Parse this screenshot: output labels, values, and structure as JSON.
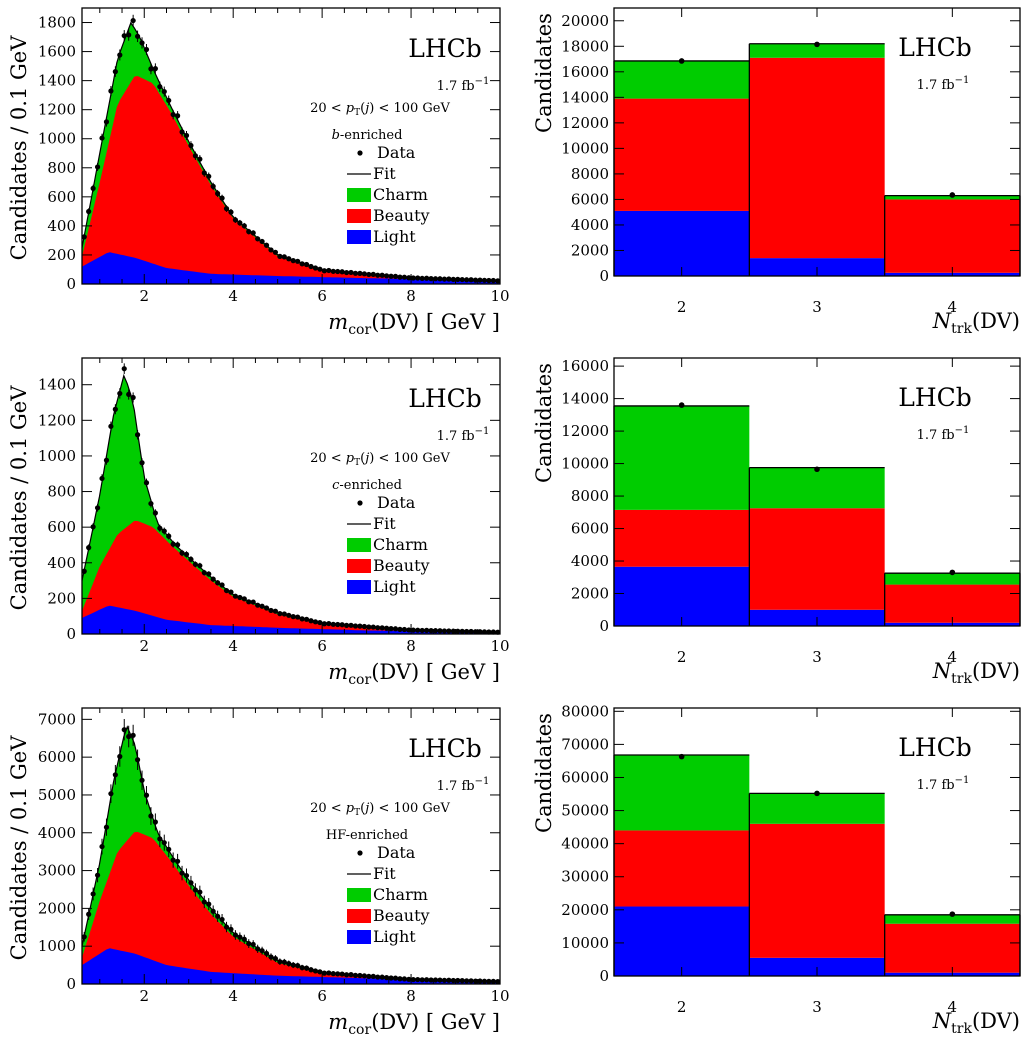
{
  "chart_data": [
    {
      "type": "area",
      "panel": "mcor-b-enriched",
      "ylabel": "Candidates / 0.1 GeV",
      "xlabel": "m_cor(DV) [GeV]",
      "xlim": [
        0.6,
        10
      ],
      "ylim": [
        0,
        1900
      ],
      "xticks": [
        2,
        4,
        6,
        8,
        10
      ],
      "yticks": [
        0,
        200,
        400,
        600,
        800,
        1000,
        1200,
        1400,
        1600,
        1800
      ],
      "labels": [
        "LHCb",
        "1.7 fb⁻¹",
        "20 < pT(j) < 100 GeV",
        "b-enriched"
      ],
      "legend": [
        "Data",
        "Fit",
        "Charm",
        "Beauty",
        "Light"
      ],
      "legend_position": "right",
      "total_max": 1800,
      "beauty_max": 1440,
      "light_max": 220,
      "series": [
        {
          "name": "Light",
          "color": "#0000ff",
          "x": [
            0.6,
            1.2,
            1.8,
            2.5,
            3.5,
            5,
            7,
            10
          ],
          "values": [
            120,
            220,
            180,
            110,
            70,
            55,
            40,
            25
          ]
        },
        {
          "name": "Beauty",
          "color": "#ff0000",
          "x": [
            0.6,
            1.0,
            1.4,
            1.8,
            2.2,
            2.6,
            3.0,
            3.5,
            4.0,
            5.0,
            6.0,
            8.0,
            10
          ],
          "values": [
            190,
            700,
            1240,
            1440,
            1380,
            1180,
            950,
            680,
            450,
            190,
            90,
            40,
            20
          ]
        },
        {
          "name": "Charm",
          "color": "#00cc00",
          "x": [
            0.6,
            1.0,
            1.4,
            1.7,
            1.9,
            2.2,
            2.6,
            3.0,
            3.5,
            4.0,
            5.0,
            6.0,
            8.0,
            10
          ],
          "values": [
            250,
            900,
            1550,
            1800,
            1700,
            1480,
            1220,
            980,
            700,
            460,
            200,
            95,
            42,
            22
          ]
        }
      ]
    },
    {
      "type": "bar",
      "panel": "ntrk-b-enriched",
      "ylabel": "Candidates",
      "xlabel": "N_trk(DV)",
      "categories": [
        "2",
        "3",
        "4"
      ],
      "ylim": [
        0,
        21000
      ],
      "yticks": [
        0,
        2000,
        4000,
        6000,
        8000,
        10000,
        12000,
        14000,
        16000,
        18000,
        20000
      ],
      "labels": [
        "LHCb",
        "1.7 fb⁻¹"
      ],
      "series": [
        {
          "name": "Light",
          "color": "#0000ff",
          "values": [
            5100,
            1400,
            250
          ]
        },
        {
          "name": "Beauty",
          "color": "#ff0000",
          "values": [
            8800,
            15700,
            5750
          ]
        },
        {
          "name": "Charm",
          "color": "#00cc00",
          "values": [
            2950,
            1100,
            300
          ]
        }
      ],
      "data_points": [
        16850,
        18150,
        6350
      ]
    },
    {
      "type": "area",
      "panel": "mcor-c-enriched",
      "ylabel": "Candidates / 0.1 GeV",
      "xlabel": "m_cor(DV) [GeV]",
      "xlim": [
        0.6,
        10
      ],
      "ylim": [
        0,
        1550
      ],
      "xticks": [
        2,
        4,
        6,
        8,
        10
      ],
      "yticks": [
        0,
        200,
        400,
        600,
        800,
        1000,
        1200,
        1400
      ],
      "labels": [
        "LHCb",
        "1.7 fb⁻¹",
        "20 < pT(j) < 100 GeV",
        "c-enriched"
      ],
      "legend": [
        "Data",
        "Fit",
        "Charm",
        "Beauty",
        "Light"
      ],
      "legend_position": "right",
      "total_max": 1460,
      "beauty_max": 640,
      "light_max": 160,
      "series": [
        {
          "name": "Light",
          "color": "#0000ff",
          "x": [
            0.6,
            1.2,
            1.8,
            2.5,
            3.5,
            5,
            7,
            10
          ],
          "values": [
            90,
            160,
            130,
            80,
            50,
            35,
            20,
            10
          ]
        },
        {
          "name": "Beauty",
          "color": "#ff0000",
          "x": [
            0.6,
            1.0,
            1.4,
            1.8,
            2.2,
            2.6,
            3.0,
            3.5,
            4.0,
            5.0,
            6.0,
            8.0,
            10
          ],
          "values": [
            130,
            380,
            560,
            640,
            600,
            500,
            410,
            300,
            210,
            110,
            55,
            20,
            8
          ]
        },
        {
          "name": "Charm",
          "color": "#00cc00",
          "x": [
            0.6,
            1.0,
            1.3,
            1.55,
            1.75,
            2.0,
            2.3,
            2.7,
            3.0,
            3.5,
            4.0,
            5.0,
            6.0,
            8.0,
            10
          ],
          "values": [
            300,
            780,
            1220,
            1460,
            1300,
            880,
            620,
            500,
            430,
            320,
            220,
            120,
            60,
            22,
            10
          ]
        }
      ]
    },
    {
      "type": "bar",
      "panel": "ntrk-c-enriched",
      "ylabel": "Candidates",
      "xlabel": "N_trk(DV)",
      "categories": [
        "2",
        "3",
        "4"
      ],
      "ylim": [
        0,
        16500
      ],
      "yticks": [
        0,
        2000,
        4000,
        6000,
        8000,
        10000,
        12000,
        14000,
        16000
      ],
      "labels": [
        "LHCb",
        "1.7 fb⁻¹"
      ],
      "series": [
        {
          "name": "Light",
          "color": "#0000ff",
          "values": [
            3650,
            1000,
            200
          ]
        },
        {
          "name": "Beauty",
          "color": "#ff0000",
          "values": [
            3500,
            6250,
            2350
          ]
        },
        {
          "name": "Charm",
          "color": "#00cc00",
          "values": [
            6400,
            2500,
            700
          ]
        }
      ],
      "data_points": [
        13600,
        9650,
        3300
      ]
    },
    {
      "type": "area",
      "panel": "mcor-hf-enriched",
      "ylabel": "Candidates / 0.1 GeV",
      "xlabel": "m_cor(DV) [GeV]",
      "xlim": [
        0.6,
        10
      ],
      "ylim": [
        0,
        7300
      ],
      "xticks": [
        2,
        4,
        6,
        8,
        10
      ],
      "yticks": [
        0,
        1000,
        2000,
        3000,
        4000,
        5000,
        6000,
        7000
      ],
      "labels": [
        "LHCb",
        "1.7 fb⁻¹",
        "20 < pT(j) < 100 GeV",
        "HF-enriched"
      ],
      "legend": [
        "Data",
        "Fit",
        "Charm",
        "Beauty",
        "Light"
      ],
      "legend_position": "right",
      "total_max": 6850,
      "beauty_max": 4050,
      "light_max": 950,
      "series": [
        {
          "name": "Light",
          "color": "#0000ff",
          "x": [
            0.6,
            1.2,
            1.8,
            2.5,
            3.5,
            5,
            7,
            10
          ],
          "values": [
            500,
            950,
            800,
            500,
            320,
            220,
            150,
            80
          ]
        },
        {
          "name": "Beauty",
          "color": "#ff0000",
          "x": [
            0.6,
            1.0,
            1.4,
            1.8,
            2.2,
            2.6,
            3.0,
            3.5,
            4.0,
            5.0,
            6.0,
            8.0,
            10
          ],
          "values": [
            700,
            2200,
            3500,
            4050,
            3850,
            3250,
            2600,
            1850,
            1250,
            560,
            270,
            110,
            60
          ]
        },
        {
          "name": "Charm",
          "color": "#00cc00",
          "x": [
            0.6,
            1.0,
            1.3,
            1.6,
            1.8,
            2.0,
            2.3,
            2.7,
            3.0,
            3.5,
            4.0,
            5.0,
            6.0,
            8.0,
            10
          ],
          "values": [
            1000,
            3200,
            5300,
            6850,
            6300,
            5100,
            4000,
            3250,
            2750,
            2000,
            1350,
            620,
            300,
            120,
            65
          ]
        }
      ]
    },
    {
      "type": "bar",
      "panel": "ntrk-hf-enriched",
      "ylabel": "Candidates",
      "xlabel": "N_trk(DV)",
      "categories": [
        "2",
        "3",
        "4"
      ],
      "ylim": [
        0,
        81000
      ],
      "yticks": [
        0,
        10000,
        20000,
        30000,
        40000,
        50000,
        60000,
        70000,
        80000
      ],
      "labels": [
        "LHCb",
        "1.7 fb⁻¹"
      ],
      "series": [
        {
          "name": "Light",
          "color": "#0000ff",
          "values": [
            21000,
            5500,
            1000
          ]
        },
        {
          "name": "Beauty",
          "color": "#ff0000",
          "values": [
            23000,
            40500,
            14800
          ]
        },
        {
          "name": "Charm",
          "color": "#00cc00",
          "values": [
            22800,
            9200,
            2700
          ]
        }
      ],
      "data_points": [
        66300,
        55200,
        18700
      ]
    }
  ]
}
